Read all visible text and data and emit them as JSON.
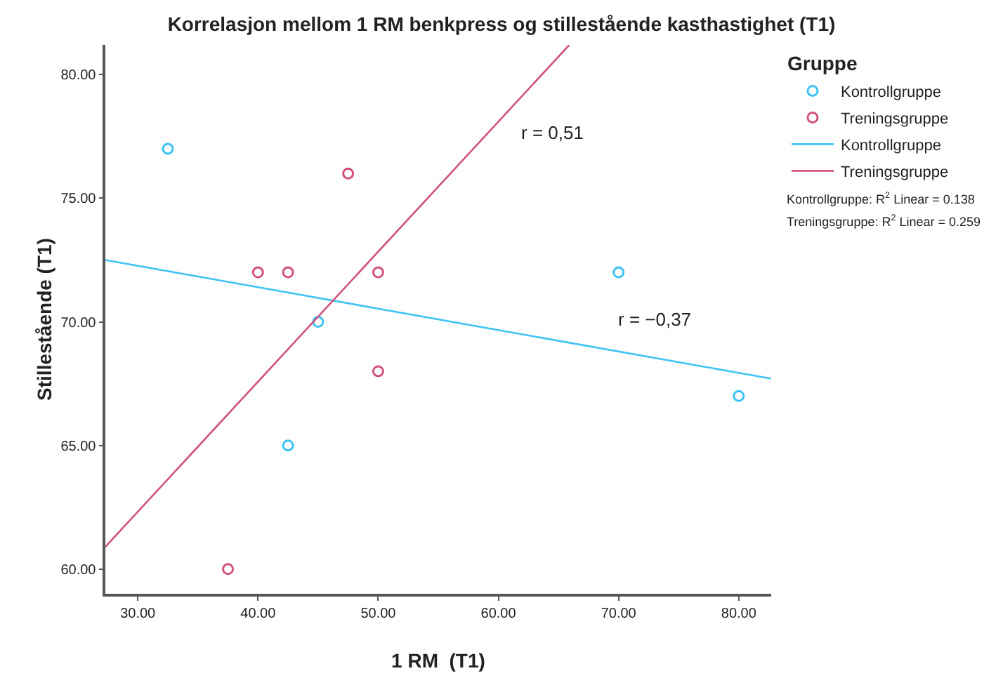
{
  "chart_data": {
    "type": "scatter",
    "title": "Korrelasjon mellom 1 RM benkpress og stillestående kasthastighet (T1)",
    "xlabel": "1 RM  (T1)",
    "ylabel": "Stillestående (T1)",
    "legend_title": "Gruppe",
    "marker": "circle",
    "grid": false,
    "legend": "right",
    "series": [
      {
        "name": "Kontrollgruppe",
        "color": "#3ec3f5",
        "x": [
          32.5,
          45,
          42.5,
          70,
          80
        ],
        "values": [
          77,
          70,
          65,
          72,
          67
        ]
      },
      {
        "name": "Treningsgruppe",
        "color": "#d0527e",
        "x": [
          47.5,
          40,
          42.5,
          50,
          50,
          37.5
        ],
        "values": [
          76,
          72,
          72,
          72,
          68,
          60
        ]
      },
      {
        "name": "Kontrollgruppe",
        "type": "line",
        "marker": "none",
        "color": "#3ec3f5",
        "x": [
          27.3,
          82.7
        ],
        "values": [
          72.5,
          67.7
        ]
      },
      {
        "name": "Treningsgruppe",
        "type": "line",
        "marker": "none",
        "color": "#d0527e",
        "x": [
          27.3,
          65.9
        ],
        "values": [
          60.9,
          81.2
        ]
      }
    ],
    "annotations": [
      "r = 0,51",
      "r = −0,37",
      "Kontrollgruppe: R$^{2}$ Linear = 0.138",
      "Treningsgruppe: R$^{2}$ Linear = 0.259"
    ],
    "xlim": [
      27.3,
      82.7
    ],
    "xticks": [
      {
        "value": 30,
        "label": "30.00"
      },
      {
        "value": 40,
        "label": "40.00"
      },
      {
        "value": 50,
        "label": "50.00"
      },
      {
        "value": 60,
        "label": "60.00"
      },
      {
        "value": 70,
        "label": "70.00"
      },
      {
        "value": 80,
        "label": "80.00"
      }
    ],
    "ylim": [
      59,
      81.2
    ],
    "yticks": [
      {
        "value": 60,
        "label": "60.00"
      },
      {
        "value": 65,
        "label": "65.00"
      },
      {
        "value": 70,
        "label": "70.00"
      },
      {
        "value": 75,
        "label": "75.00"
      },
      {
        "value": 80,
        "label": "80.00"
      }
    ]
  }
}
